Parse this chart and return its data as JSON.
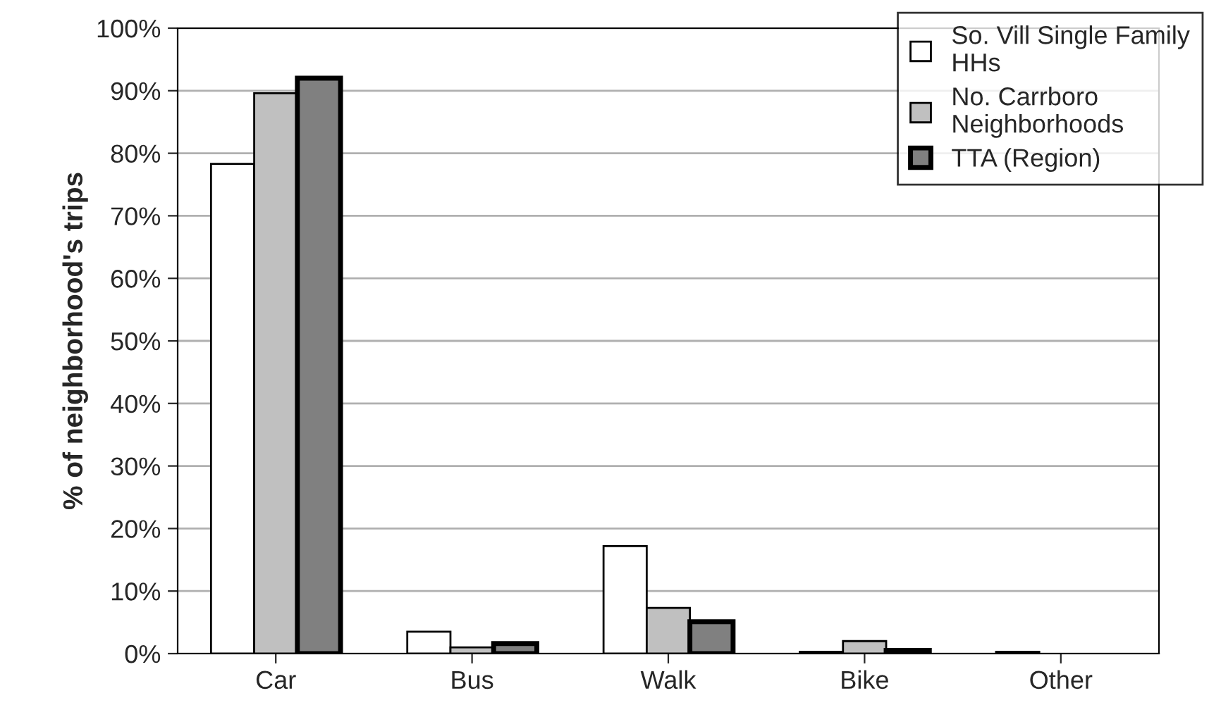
{
  "chart_data": {
    "type": "bar",
    "ylabel": "% of neighborhood's trips",
    "categories": [
      "Car",
      "Bus",
      "Walk",
      "Bike",
      "Other"
    ],
    "series": [
      {
        "name": "So. Vill Single Family HHs",
        "color": "#ffffff",
        "values": [
          78.3,
          3.5,
          17.2,
          0.3,
          0.3
        ]
      },
      {
        "name": "No. Carrboro Neighborhoods",
        "color": "#c0c0c0",
        "values": [
          89.6,
          1.0,
          7.3,
          2.0,
          null
        ]
      },
      {
        "name": "TTA (Region)",
        "color": "#808080",
        "values": [
          92.0,
          1.6,
          5.1,
          0.5,
          null
        ]
      }
    ],
    "ylim": [
      0,
      100
    ],
    "yticks": [
      {
        "value": 0,
        "label": "0%"
      },
      {
        "value": 10,
        "label": "10%"
      },
      {
        "value": 20,
        "label": "20%"
      },
      {
        "value": 30,
        "label": "30%"
      },
      {
        "value": 40,
        "label": "40%"
      },
      {
        "value": 50,
        "label": "50%"
      },
      {
        "value": 60,
        "label": "60%"
      },
      {
        "value": 70,
        "label": "70%"
      },
      {
        "value": 80,
        "label": "80%"
      },
      {
        "value": 90,
        "label": "90%"
      },
      {
        "value": 100,
        "label": "100%"
      }
    ],
    "grid": "y",
    "legend": "top right"
  }
}
